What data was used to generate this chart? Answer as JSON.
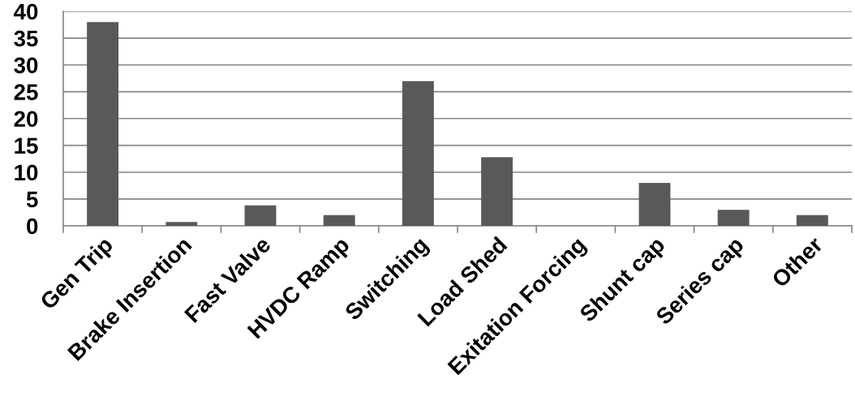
{
  "chart_data": {
    "type": "bar",
    "categories": [
      "Gen Trip",
      "Brake Insertion",
      "Fast Valve",
      "HVDC Ramp",
      "Switching",
      "Load Shed",
      "Exitation Forcing",
      "Shunt cap",
      "Series cap",
      "Other"
    ],
    "values": [
      38,
      0.7,
      3.8,
      2,
      27,
      12.8,
      0,
      8,
      3,
      2
    ],
    "color": "#595959",
    "ylim": [
      0,
      40
    ],
    "yticks": [
      0,
      5,
      10,
      15,
      20,
      25,
      30,
      35,
      40
    ],
    "grid": "y"
  }
}
